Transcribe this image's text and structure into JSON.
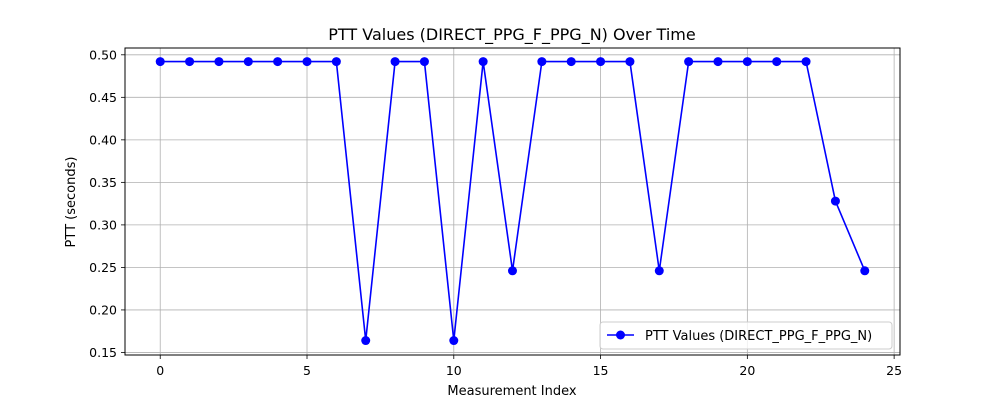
{
  "chart_data": {
    "type": "line",
    "title": "PTT Values (DIRECT_PPG_F_PPG_N) Over Time",
    "xlabel": "Measurement Index",
    "ylabel": "PTT (seconds)",
    "xlim": [
      -1.2,
      25.2
    ],
    "ylim": [
      0.147,
      0.508
    ],
    "xticks": [
      0,
      5,
      10,
      15,
      20,
      25
    ],
    "xtick_labels": [
      "0",
      "5",
      "10",
      "15",
      "20",
      "25"
    ],
    "yticks": [
      0.15,
      0.2,
      0.25,
      0.3,
      0.35,
      0.4,
      0.45,
      0.5
    ],
    "ytick_labels": [
      "0.15",
      "0.20",
      "0.25",
      "0.30",
      "0.35",
      "0.40",
      "0.45",
      "0.50"
    ],
    "grid": true,
    "legend_position": "lower-right",
    "series": [
      {
        "name": "PTT Values (DIRECT_PPG_F_PPG_N)",
        "color": "#0000ff",
        "marker": "circle",
        "x": [
          0,
          1,
          2,
          3,
          4,
          5,
          6,
          7,
          8,
          9,
          10,
          11,
          12,
          13,
          14,
          15,
          16,
          17,
          18,
          19,
          20,
          21,
          22,
          23,
          24
        ],
        "values": [
          0.492,
          0.492,
          0.492,
          0.492,
          0.492,
          0.492,
          0.492,
          0.164,
          0.492,
          0.492,
          0.164,
          0.492,
          0.246,
          0.492,
          0.492,
          0.492,
          0.492,
          0.246,
          0.492,
          0.492,
          0.492,
          0.492,
          0.492,
          0.328,
          0.246
        ]
      }
    ]
  }
}
